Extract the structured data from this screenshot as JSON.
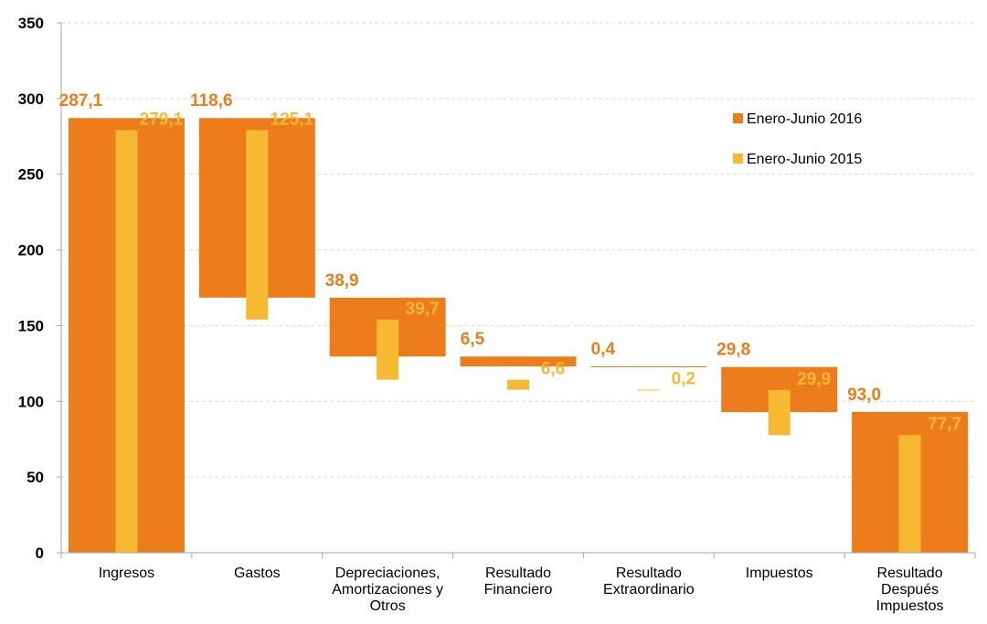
{
  "chart_data": {
    "type": "bar",
    "subtype": "waterfall",
    "categories": [
      [
        "Ingresos"
      ],
      [
        "Gastos"
      ],
      [
        "Depreciaciones,",
        "Amortizaciones y",
        "Otros"
      ],
      [
        "Resultado",
        "Financiero"
      ],
      [
        "Resultado",
        "Extraordinario"
      ],
      [
        "Impuestos"
      ],
      [
        "Resultado",
        "Después",
        "Impuestos"
      ]
    ],
    "ylim": [
      0,
      350
    ],
    "yticks": [
      0,
      50,
      100,
      150,
      200,
      250,
      300,
      350
    ],
    "grid": true,
    "legend_position": "top-right",
    "series": [
      {
        "name": "Enero-Junio 2016",
        "color": "#ED7D1A",
        "bars": [
          {
            "bottom": 0,
            "top": 287.1
          },
          {
            "bottom": 168.5,
            "top": 287.1
          },
          {
            "bottom": 129.6,
            "top": 168.5
          },
          {
            "bottom": 123.1,
            "top": 129.6
          },
          {
            "bottom": 122.7,
            "top": 123.1
          },
          {
            "bottom": 92.9,
            "top": 122.7
          },
          {
            "bottom": 0,
            "top": 93.0
          }
        ],
        "labels": [
          "287,1",
          "118,6",
          "38,9",
          "6,5",
          "0,4",
          "29,8",
          "93,0"
        ]
      },
      {
        "name": "Enero-Junio 2015",
        "color": "#F8B932",
        "bars": [
          {
            "bottom": 0,
            "top": 279.1
          },
          {
            "bottom": 154.0,
            "top": 279.1
          },
          {
            "bottom": 114.3,
            "top": 154.0
          },
          {
            "bottom": 107.7,
            "top": 114.3
          },
          {
            "bottom": 107.5,
            "top": 107.7
          },
          {
            "bottom": 77.6,
            "top": 107.5
          },
          {
            "bottom": 0,
            "top": 77.7
          }
        ],
        "labels": [
          "279,1",
          "125,1",
          "39,7",
          "6,6",
          "0,2",
          "29,9",
          "77,7"
        ]
      }
    ]
  }
}
